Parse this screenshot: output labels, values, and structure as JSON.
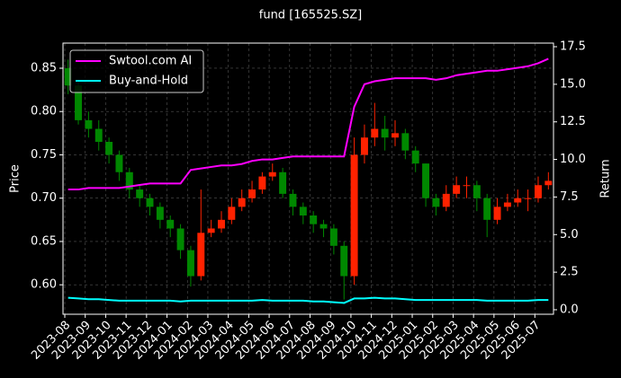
{
  "chart_data": {
    "type": "candlestick",
    "title": "fund [165525.SZ]",
    "ylabel": "Price",
    "y2label": "Return",
    "categories": [
      "2023-08",
      null,
      "2023-09",
      null,
      "2023-10",
      null,
      "2023-11",
      null,
      "2023-12",
      null,
      "2024-01",
      null,
      "2024-02",
      null,
      "2024-03",
      null,
      "2024-04",
      null,
      "2024-05",
      null,
      "2024-06",
      null,
      "2024-07",
      null,
      "2024-08",
      null,
      "2024-09",
      null,
      "2024-10",
      null,
      "2024-11",
      null,
      "2024-12",
      null,
      "2025-01",
      null,
      "2025-02",
      null,
      "2025-03",
      null,
      "2025-04",
      null,
      "2025-05",
      null,
      "2025-06",
      null,
      "2025-07",
      null
    ],
    "open": [
      0.85,
      0.83,
      0.79,
      0.78,
      0.765,
      0.75,
      0.73,
      0.71,
      0.7,
      0.69,
      0.675,
      0.665,
      0.64,
      0.61,
      0.66,
      0.665,
      0.675,
      0.69,
      0.7,
      0.71,
      0.725,
      0.73,
      0.705,
      0.69,
      0.68,
      0.67,
      0.665,
      0.645,
      0.61,
      0.75,
      0.77,
      0.78,
      0.77,
      0.775,
      0.755,
      0.74,
      0.7,
      0.69,
      0.705,
      0.715,
      0.715,
      0.7,
      0.675,
      0.69,
      0.695,
      0.7,
      0.7,
      0.715
    ],
    "high": [
      0.86,
      0.835,
      0.8,
      0.79,
      0.77,
      0.755,
      0.735,
      0.715,
      0.705,
      0.695,
      0.68,
      0.67,
      0.645,
      0.71,
      0.675,
      0.685,
      0.7,
      0.71,
      0.72,
      0.73,
      0.74,
      0.735,
      0.71,
      0.695,
      0.685,
      0.675,
      0.67,
      0.65,
      0.77,
      0.785,
      0.81,
      0.795,
      0.79,
      0.78,
      0.76,
      0.74,
      0.705,
      0.715,
      0.725,
      0.725,
      0.72,
      0.705,
      0.7,
      0.705,
      0.71,
      0.71,
      0.725,
      0.73
    ],
    "low": [
      0.82,
      0.785,
      0.77,
      0.755,
      0.74,
      0.72,
      0.7,
      0.69,
      0.68,
      0.665,
      0.655,
      0.63,
      0.598,
      0.605,
      0.655,
      0.66,
      0.67,
      0.685,
      0.695,
      0.705,
      0.72,
      0.7,
      0.68,
      0.67,
      0.66,
      0.655,
      0.635,
      0.583,
      0.6,
      0.74,
      0.76,
      0.755,
      0.76,
      0.745,
      0.73,
      0.69,
      0.68,
      0.685,
      0.7,
      0.7,
      0.685,
      0.655,
      0.67,
      0.685,
      0.69,
      0.685,
      0.695,
      0.71
    ],
    "close": [
      0.83,
      0.79,
      0.78,
      0.765,
      0.75,
      0.73,
      0.71,
      0.7,
      0.69,
      0.675,
      0.665,
      0.64,
      0.61,
      0.66,
      0.665,
      0.675,
      0.69,
      0.7,
      0.71,
      0.725,
      0.73,
      0.705,
      0.69,
      0.68,
      0.67,
      0.665,
      0.645,
      0.61,
      0.75,
      0.77,
      0.78,
      0.77,
      0.775,
      0.755,
      0.74,
      0.7,
      0.69,
      0.705,
      0.715,
      0.715,
      0.7,
      0.675,
      0.69,
      0.695,
      0.7,
      0.7,
      0.715,
      0.72
    ],
    "up_color": "#ff2200",
    "down_color": "#008800",
    "series": [
      {
        "name": "Swtool.com AI",
        "color": "#ff00ff",
        "axis": "y2",
        "values": [
          8.0,
          8.0,
          8.1,
          8.1,
          8.1,
          8.1,
          8.2,
          8.3,
          8.4,
          8.4,
          8.4,
          8.4,
          9.3,
          9.4,
          9.5,
          9.6,
          9.6,
          9.7,
          9.9,
          10.0,
          10.0,
          10.1,
          10.2,
          10.2,
          10.2,
          10.2,
          10.2,
          10.2,
          13.5,
          15.0,
          15.2,
          15.3,
          15.4,
          15.4,
          15.4,
          15.4,
          15.3,
          15.4,
          15.6,
          15.7,
          15.8,
          15.9,
          15.9,
          16.0,
          16.1,
          16.2,
          16.4,
          16.7
        ]
      },
      {
        "name": "Buy-and-Hold",
        "color": "#00ffff",
        "axis": "y2",
        "values": [
          0.8,
          0.75,
          0.7,
          0.7,
          0.65,
          0.6,
          0.6,
          0.6,
          0.6,
          0.6,
          0.6,
          0.55,
          0.6,
          0.6,
          0.6,
          0.6,
          0.6,
          0.6,
          0.6,
          0.65,
          0.6,
          0.6,
          0.6,
          0.6,
          0.55,
          0.55,
          0.5,
          0.45,
          0.75,
          0.75,
          0.8,
          0.75,
          0.75,
          0.7,
          0.65,
          0.65,
          0.65,
          0.65,
          0.65,
          0.65,
          0.65,
          0.6,
          0.6,
          0.6,
          0.6,
          0.6,
          0.65,
          0.65
        ]
      }
    ],
    "ylim": [
      0.566,
      0.879
    ],
    "yticks": [
      {
        "value": 0.6,
        "label": "0.60"
      },
      0.65,
      {
        "value": 0.7,
        "label": "0.70"
      },
      0.75,
      {
        "value": 0.8,
        "label": "0.80"
      },
      0.85
    ],
    "y2lim": [
      -0.3,
      17.74
    ],
    "y2ticks": [
      {
        "value": 0,
        "label": "0.0"
      },
      2.5,
      {
        "value": 5,
        "label": "5.0"
      },
      7.5,
      {
        "value": 10,
        "label": "10.0"
      },
      12.5,
      {
        "value": 15,
        "label": "15.0"
      },
      17.5
    ],
    "grid": true,
    "legend": "upper-left"
  }
}
